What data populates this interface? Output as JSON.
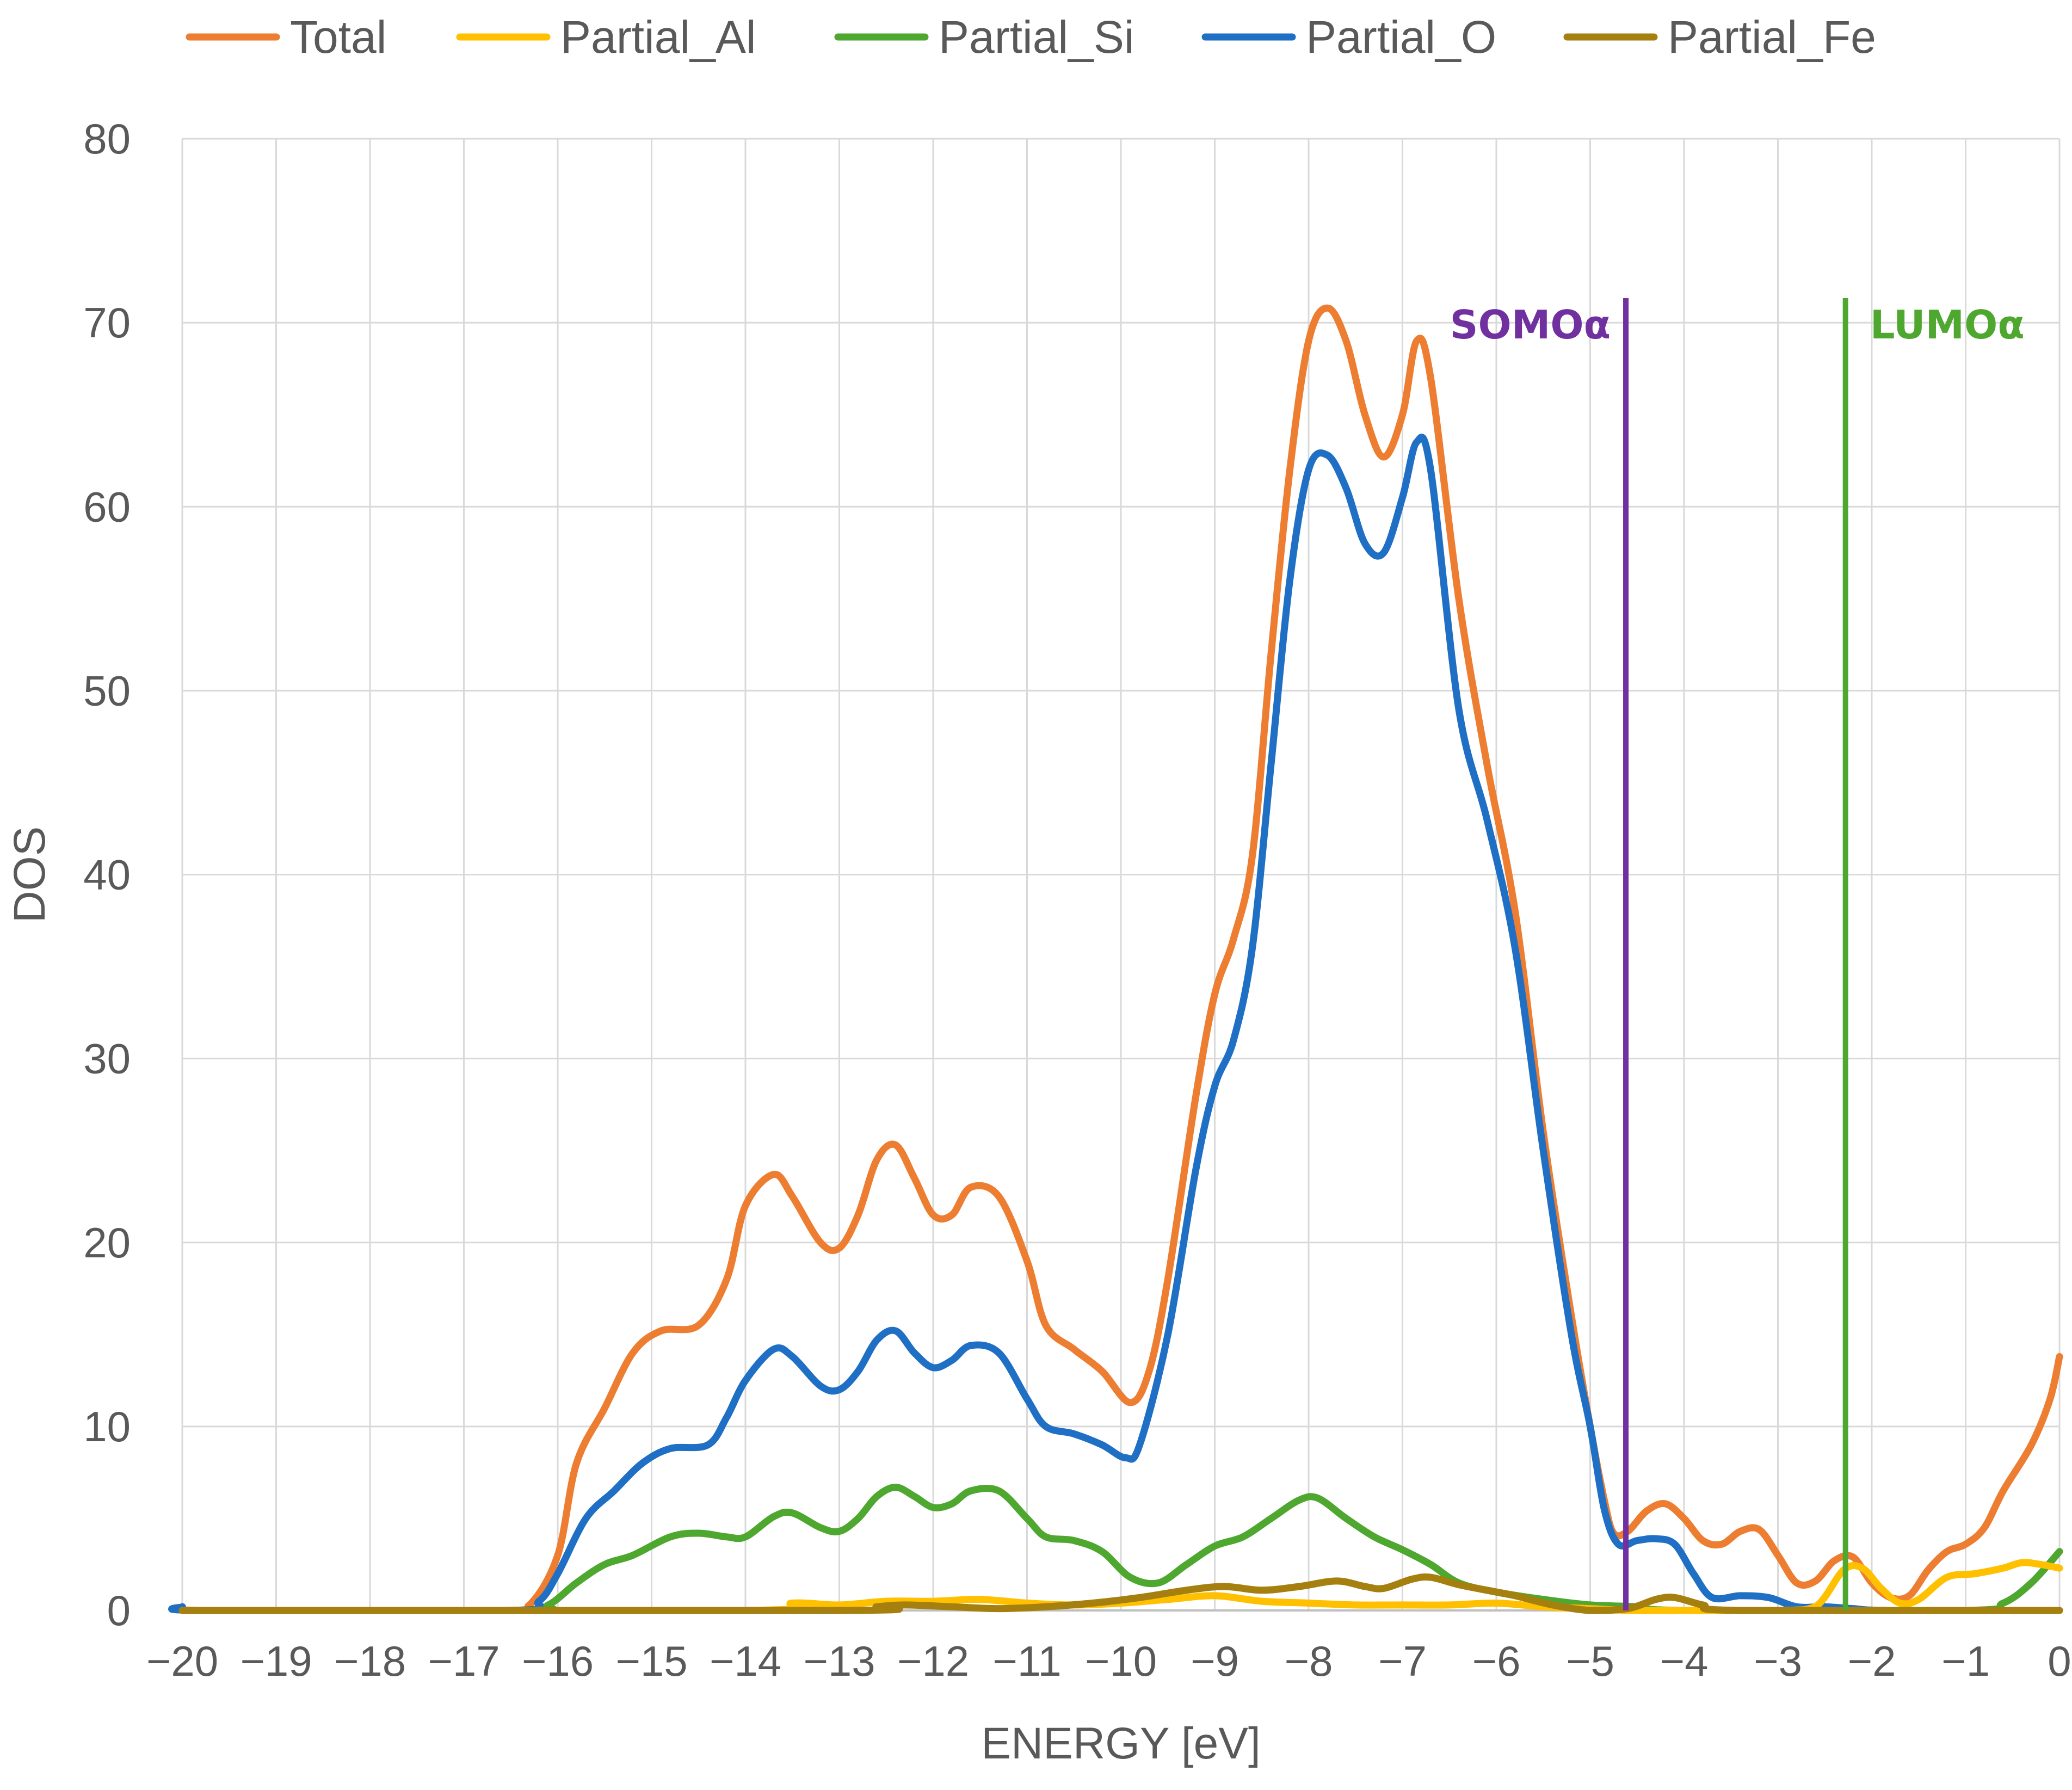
{
  "chart_data": {
    "type": "line",
    "xlabel": "ENERGY [eV]",
    "ylabel": "DOS",
    "xlim": [
      -20,
      0
    ],
    "ylim": [
      0,
      80
    ],
    "x_ticks": [
      -20,
      -19,
      -18,
      -17,
      -16,
      -15,
      -14,
      -13,
      -12,
      -11,
      -10,
      -9,
      -8,
      -7,
      -6,
      -5,
      -4,
      -3,
      -2,
      -1,
      0
    ],
    "x_tick_labels": [
      "−20",
      "−19",
      "−18",
      "−17",
      "−16",
      "−15",
      "−14",
      "−13",
      "−12",
      "−11",
      "−10",
      "−9",
      "−8",
      "−7",
      "−6",
      "−5",
      "−4",
      "−3",
      "−2",
      "−1",
      "0"
    ],
    "y_ticks": [
      0,
      10,
      20,
      30,
      40,
      50,
      60,
      70,
      80
    ],
    "y_tick_labels": [
      "0",
      "10",
      "20",
      "30",
      "40",
      "50",
      "60",
      "70",
      "80"
    ],
    "grid": true,
    "legend_position": "top",
    "series": [
      {
        "name": "Total",
        "color": "#ED7D31",
        "points": [
          [
            -20,
            0.2
          ],
          [
            -19.8,
            0
          ],
          [
            -16.6,
            0
          ],
          [
            -16.3,
            0.3
          ],
          [
            -16,
            3
          ],
          [
            -15.8,
            8
          ],
          [
            -15.5,
            11
          ],
          [
            -15.2,
            14
          ],
          [
            -14.9,
            15.2
          ],
          [
            -14.5,
            15.5
          ],
          [
            -14.2,
            18
          ],
          [
            -14,
            22
          ],
          [
            -13.7,
            23.7
          ],
          [
            -13.5,
            22.5
          ],
          [
            -13.2,
            20
          ],
          [
            -13,
            19.7
          ],
          [
            -12.8,
            21.5
          ],
          [
            -12.6,
            24.5
          ],
          [
            -12.4,
            25.3
          ],
          [
            -12.2,
            23.5
          ],
          [
            -12,
            21.5
          ],
          [
            -11.8,
            21.5
          ],
          [
            -11.6,
            23
          ],
          [
            -11.3,
            22.5
          ],
          [
            -11,
            19
          ],
          [
            -10.8,
            15.5
          ],
          [
            -10.5,
            14.2
          ],
          [
            -10.2,
            13
          ],
          [
            -9.9,
            11.3
          ],
          [
            -9.7,
            13
          ],
          [
            -9.5,
            18
          ],
          [
            -9.2,
            28
          ],
          [
            -9,
            33.5
          ],
          [
            -8.8,
            36.5
          ],
          [
            -8.6,
            41
          ],
          [
            -8.4,
            52
          ],
          [
            -8.2,
            62
          ],
          [
            -8,
            69
          ],
          [
            -7.8,
            70.8
          ],
          [
            -7.6,
            69
          ],
          [
            -7.4,
            65
          ],
          [
            -7.2,
            62.7
          ],
          [
            -7,
            65
          ],
          [
            -6.85,
            69
          ],
          [
            -6.7,
            67
          ],
          [
            -6.4,
            55
          ],
          [
            -6.1,
            46
          ],
          [
            -5.8,
            38
          ],
          [
            -5.5,
            26
          ],
          [
            -5.2,
            16
          ],
          [
            -5,
            10
          ],
          [
            -4.85,
            6
          ],
          [
            -4.75,
            4.2
          ],
          [
            -4.6,
            4.3
          ],
          [
            -4.4,
            5.4
          ],
          [
            -4.2,
            5.8
          ],
          [
            -4,
            5
          ],
          [
            -3.8,
            3.8
          ],
          [
            -3.6,
            3.6
          ],
          [
            -3.4,
            4.3
          ],
          [
            -3.2,
            4.4
          ],
          [
            -3,
            3
          ],
          [
            -2.8,
            1.5
          ],
          [
            -2.6,
            1.6
          ],
          [
            -2.4,
            2.7
          ],
          [
            -2.2,
            2.9
          ],
          [
            -2,
            1.5
          ],
          [
            -1.8,
            0.7
          ],
          [
            -1.6,
            0.8
          ],
          [
            -1.4,
            2.2
          ],
          [
            -1.2,
            3.2
          ],
          [
            -1,
            3.6
          ],
          [
            -0.8,
            4.5
          ],
          [
            -0.6,
            6.5
          ],
          [
            -0.3,
            9
          ],
          [
            -0.1,
            11.5
          ],
          [
            0,
            13.8
          ]
        ]
      },
      {
        "name": "Partial_Al",
        "color": "#FFC000",
        "points": [
          [
            -20,
            0
          ],
          [
            -14,
            0
          ],
          [
            -13.5,
            0.4
          ],
          [
            -13,
            0.3
          ],
          [
            -12.5,
            0.5
          ],
          [
            -12,
            0.5
          ],
          [
            -11.5,
            0.6
          ],
          [
            -11,
            0.4
          ],
          [
            -10.5,
            0.3
          ],
          [
            -10,
            0.4
          ],
          [
            -9.5,
            0.6
          ],
          [
            -9,
            0.8
          ],
          [
            -8.5,
            0.5
          ],
          [
            -8,
            0.4
          ],
          [
            -7.5,
            0.3
          ],
          [
            -7,
            0.3
          ],
          [
            -6.5,
            0.3
          ],
          [
            -6,
            0.4
          ],
          [
            -5.5,
            0.2
          ],
          [
            -5,
            0.1
          ],
          [
            -4.5,
            0
          ],
          [
            -3,
            0
          ],
          [
            -2.6,
            0.2
          ],
          [
            -2.3,
            2.2
          ],
          [
            -2.1,
            2.3
          ],
          [
            -1.9,
            1.2
          ],
          [
            -1.7,
            0.4
          ],
          [
            -1.5,
            0.6
          ],
          [
            -1.2,
            1.8
          ],
          [
            -0.9,
            2
          ],
          [
            -0.6,
            2.3
          ],
          [
            -0.4,
            2.6
          ],
          [
            -0.2,
            2.5
          ],
          [
            0,
            2.3
          ]
        ]
      },
      {
        "name": "Partial_Si",
        "color": "#4EA72E",
        "points": [
          [
            -20,
            0
          ],
          [
            -16.4,
            0
          ],
          [
            -16.1,
            0.3
          ],
          [
            -15.8,
            1.5
          ],
          [
            -15.5,
            2.5
          ],
          [
            -15.2,
            3
          ],
          [
            -14.8,
            4
          ],
          [
            -14.5,
            4.2
          ],
          [
            -14.2,
            4
          ],
          [
            -14,
            4
          ],
          [
            -13.7,
            5.1
          ],
          [
            -13.5,
            5.3
          ],
          [
            -13.2,
            4.5
          ],
          [
            -13,
            4.3
          ],
          [
            -12.8,
            5
          ],
          [
            -12.6,
            6.2
          ],
          [
            -12.4,
            6.7
          ],
          [
            -12.2,
            6.2
          ],
          [
            -12,
            5.6
          ],
          [
            -11.8,
            5.8
          ],
          [
            -11.6,
            6.5
          ],
          [
            -11.3,
            6.5
          ],
          [
            -11,
            5
          ],
          [
            -10.8,
            4
          ],
          [
            -10.5,
            3.8
          ],
          [
            -10.2,
            3.2
          ],
          [
            -9.9,
            1.8
          ],
          [
            -9.6,
            1.5
          ],
          [
            -9.3,
            2.5
          ],
          [
            -9,
            3.5
          ],
          [
            -8.7,
            4
          ],
          [
            -8.4,
            5
          ],
          [
            -8.1,
            6
          ],
          [
            -7.9,
            6.1
          ],
          [
            -7.6,
            5
          ],
          [
            -7.3,
            4
          ],
          [
            -7,
            3.3
          ],
          [
            -6.7,
            2.5
          ],
          [
            -6.4,
            1.5
          ],
          [
            -6,
            1
          ],
          [
            -5.5,
            0.6
          ],
          [
            -5,
            0.3
          ],
          [
            -4.5,
            0.2
          ],
          [
            -4,
            0
          ],
          [
            -1,
            0
          ],
          [
            -0.6,
            0.4
          ],
          [
            -0.3,
            1.5
          ],
          [
            0,
            3.2
          ]
        ]
      },
      {
        "name": "Partial_O",
        "color": "#1F6FC5",
        "points": [
          [
            -20,
            0.2
          ],
          [
            -19.8,
            0
          ],
          [
            -16.5,
            0
          ],
          [
            -16.2,
            0.5
          ],
          [
            -16,
            2
          ],
          [
            -15.7,
            5
          ],
          [
            -15.4,
            6.5
          ],
          [
            -15.1,
            8
          ],
          [
            -14.8,
            8.8
          ],
          [
            -14.4,
            9
          ],
          [
            -14.2,
            10.5
          ],
          [
            -14,
            12.5
          ],
          [
            -13.7,
            14.2
          ],
          [
            -13.5,
            13.8
          ],
          [
            -13.2,
            12.2
          ],
          [
            -13,
            12
          ],
          [
            -12.8,
            13
          ],
          [
            -12.6,
            14.7
          ],
          [
            -12.4,
            15.2
          ],
          [
            -12.2,
            14
          ],
          [
            -12,
            13.2
          ],
          [
            -11.8,
            13.6
          ],
          [
            -11.6,
            14.4
          ],
          [
            -11.3,
            14
          ],
          [
            -11,
            11.5
          ],
          [
            -10.8,
            10
          ],
          [
            -10.5,
            9.6
          ],
          [
            -10.2,
            9
          ],
          [
            -9.95,
            8.3
          ],
          [
            -9.8,
            9
          ],
          [
            -9.5,
            15
          ],
          [
            -9.2,
            24
          ],
          [
            -9,
            28.5
          ],
          [
            -8.8,
            31
          ],
          [
            -8.6,
            36
          ],
          [
            -8.4,
            46
          ],
          [
            -8.2,
            56
          ],
          [
            -8,
            62
          ],
          [
            -7.8,
            62.8
          ],
          [
            -7.6,
            61
          ],
          [
            -7.4,
            58
          ],
          [
            -7.2,
            57.5
          ],
          [
            -7,
            60.5
          ],
          [
            -6.85,
            63.5
          ],
          [
            -6.7,
            62
          ],
          [
            -6.4,
            49
          ],
          [
            -6.1,
            43
          ],
          [
            -5.8,
            36
          ],
          [
            -5.5,
            25
          ],
          [
            -5.2,
            15
          ],
          [
            -5,
            10
          ],
          [
            -4.85,
            5.5
          ],
          [
            -4.7,
            3.6
          ],
          [
            -4.5,
            3.8
          ],
          [
            -4.3,
            3.9
          ],
          [
            -4.1,
            3.6
          ],
          [
            -3.9,
            2
          ],
          [
            -3.7,
            0.7
          ],
          [
            -3.4,
            0.8
          ],
          [
            -3.1,
            0.7
          ],
          [
            -2.8,
            0.2
          ],
          [
            -2.5,
            0.2
          ],
          [
            -2.2,
            0.1
          ],
          [
            -1.8,
            0
          ],
          [
            0,
            0
          ]
        ]
      },
      {
        "name": "Partial_Fe",
        "color": "#A5800F",
        "points": [
          [
            -20,
            0
          ],
          [
            -13,
            0
          ],
          [
            -12.6,
            0.2
          ],
          [
            -12.3,
            0.3
          ],
          [
            -11.8,
            0.2
          ],
          [
            -11.3,
            0.1
          ],
          [
            -10.8,
            0.2
          ],
          [
            -10.3,
            0.4
          ],
          [
            -9.8,
            0.7
          ],
          [
            -9.3,
            1.1
          ],
          [
            -8.9,
            1.3
          ],
          [
            -8.5,
            1.1
          ],
          [
            -8.1,
            1.3
          ],
          [
            -7.7,
            1.6
          ],
          [
            -7.4,
            1.3
          ],
          [
            -7.2,
            1.2
          ],
          [
            -6.9,
            1.7
          ],
          [
            -6.7,
            1.8
          ],
          [
            -6.4,
            1.4
          ],
          [
            -6.1,
            1.1
          ],
          [
            -5.8,
            0.8
          ],
          [
            -5.4,
            0.3
          ],
          [
            -5,
            0
          ],
          [
            -4.6,
            0.1
          ],
          [
            -4.3,
            0.6
          ],
          [
            -4.1,
            0.7
          ],
          [
            -3.8,
            0.3
          ],
          [
            -3.4,
            0
          ],
          [
            0,
            0
          ]
        ]
      }
    ],
    "vertical_markers": [
      {
        "label": "SOMOα",
        "x": -4.62,
        "color": "#7030A0"
      },
      {
        "label": "LUMOα",
        "x": -2.28,
        "color": "#4EA72E"
      }
    ]
  }
}
